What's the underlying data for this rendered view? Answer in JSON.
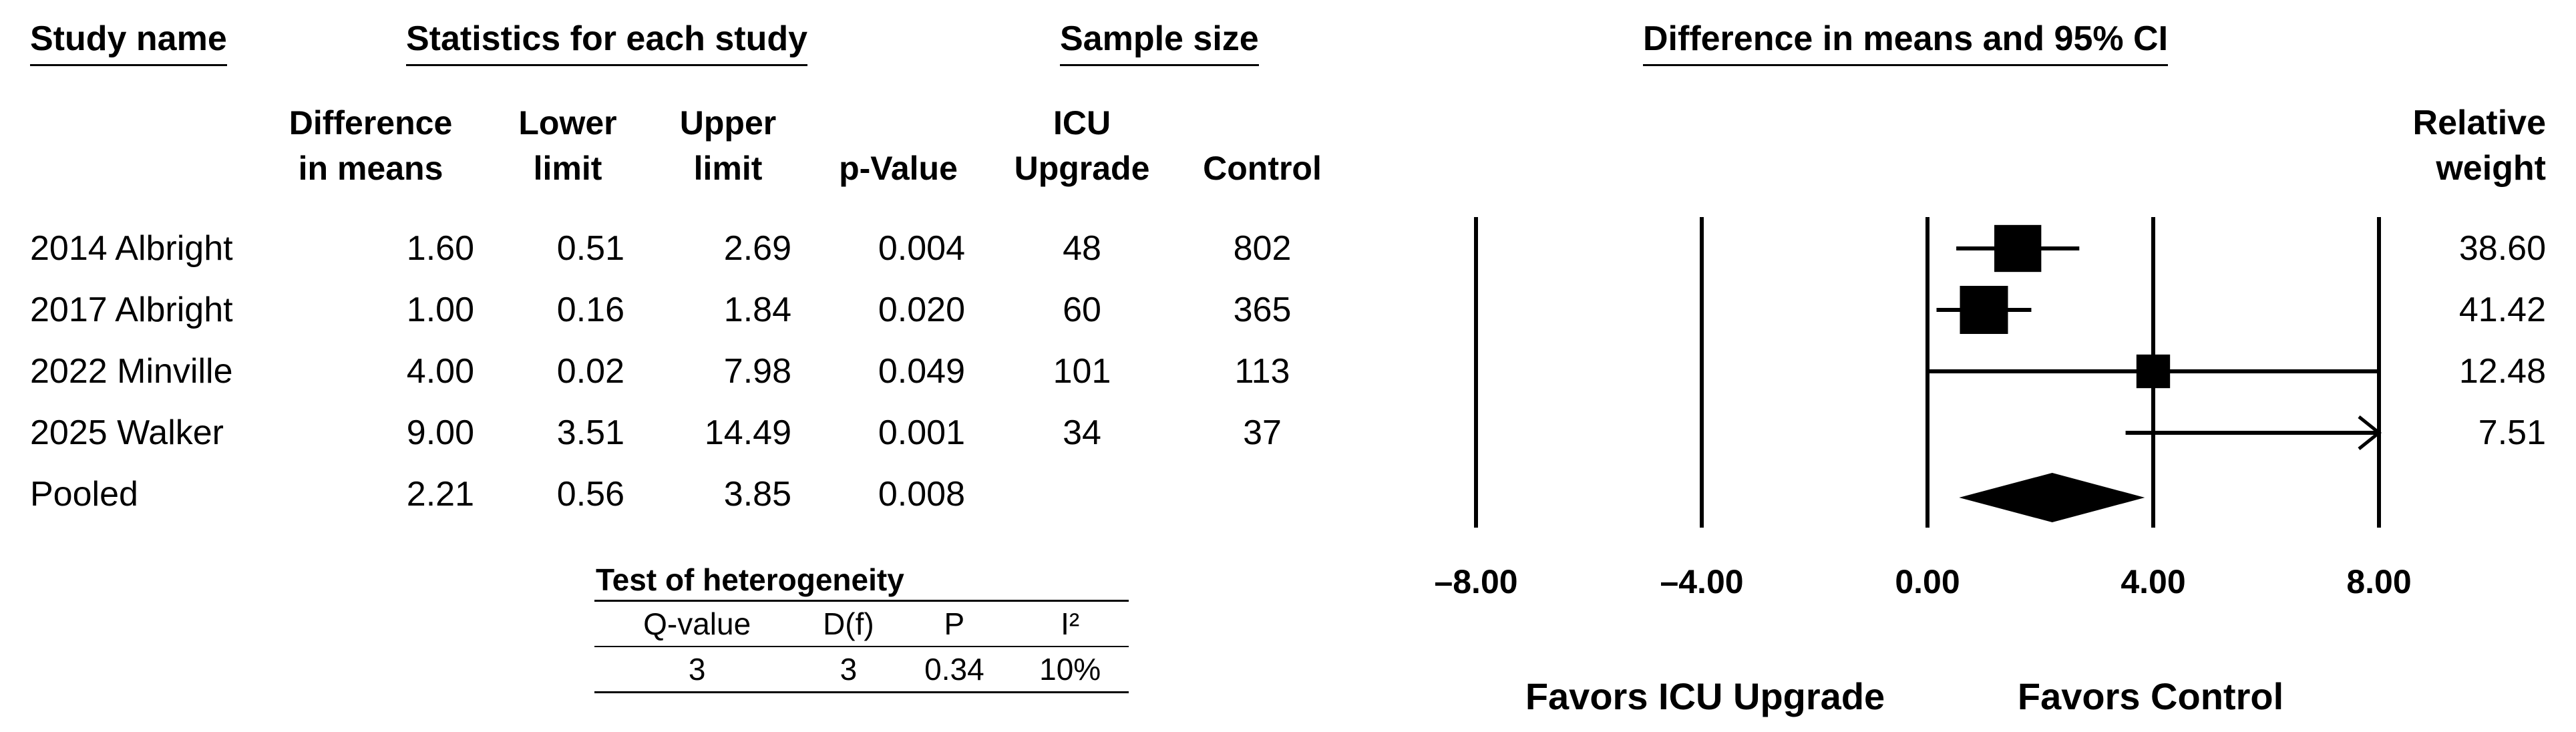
{
  "headers": {
    "study_name": "Study name",
    "stats": "Statistics for each study",
    "sample": "Sample size",
    "ci": "Difference in means and 95% CI",
    "diff": [
      "Difference",
      "in means"
    ],
    "lower": [
      "Lower",
      "limit"
    ],
    "upper": [
      "Upper",
      "limit"
    ],
    "pvalue": "p-Value",
    "icu": [
      "ICU",
      "Upgrade"
    ],
    "control": "Control",
    "relweight": [
      "Relative",
      "weight"
    ]
  },
  "chart_data": {
    "type": "forest",
    "xlim": [
      -8,
      8
    ],
    "ticks": [
      -8,
      -4,
      0,
      4,
      8
    ],
    "tick_labels": [
      "–8.00",
      "–4.00",
      "0.00",
      "4.00",
      "8.00"
    ],
    "favors_left": "Favors ICU Upgrade",
    "favors_right": "Favors Control",
    "studies": [
      {
        "name": "2014 Albright",
        "diff": "1.60",
        "lower": "0.51",
        "upper": "2.69",
        "p": "0.004",
        "icu": "48",
        "control": "802",
        "weight": "38.60",
        "d": 1.6,
        "lo": 0.51,
        "hi": 2.69,
        "w": 38.6
      },
      {
        "name": "2017 Albright",
        "diff": "1.00",
        "lower": "0.16",
        "upper": "1.84",
        "p": "0.020",
        "icu": "60",
        "control": "365",
        "weight": "41.42",
        "d": 1.0,
        "lo": 0.16,
        "hi": 1.84,
        "w": 41.42
      },
      {
        "name": "2022 Minville",
        "diff": "4.00",
        "lower": "0.02",
        "upper": "7.98",
        "p": "0.049",
        "icu": "101",
        "control": "113",
        "weight": "12.48",
        "d": 4.0,
        "lo": 0.02,
        "hi": 7.98,
        "w": 12.48
      },
      {
        "name": "2025 Walker",
        "diff": "9.00",
        "lower": "3.51",
        "upper": "14.49",
        "p": "0.001",
        "icu": "34",
        "control": "37",
        "weight": "7.51",
        "d": 9.0,
        "lo": 3.51,
        "hi": 14.49,
        "w": 7.51
      }
    ],
    "pooled": {
      "name": "Pooled",
      "diff": "2.21",
      "lower": "0.56",
      "upper": "3.85",
      "p": "0.008",
      "d": 2.21,
      "lo": 0.56,
      "hi": 3.85
    }
  },
  "heterogeneity": {
    "title": "Test of heterogeneity",
    "headers": [
      "Q-value",
      "D(f)",
      "P",
      "I²"
    ],
    "values": [
      "3",
      "3",
      "0.34",
      "10%"
    ]
  }
}
